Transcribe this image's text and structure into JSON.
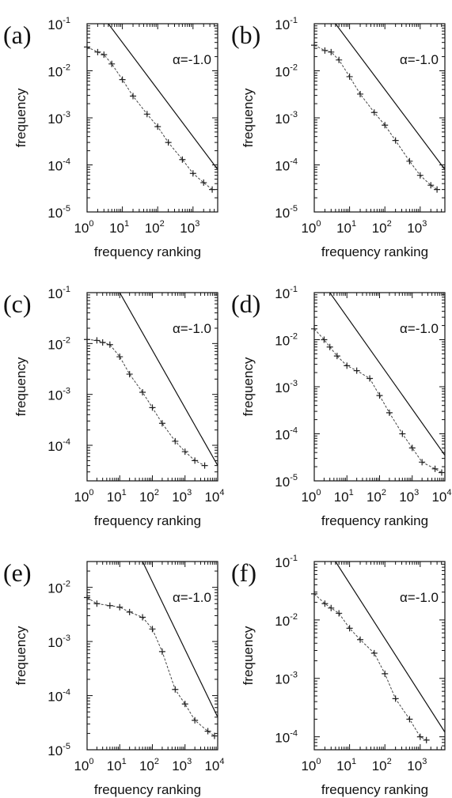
{
  "chart_data": [
    {
      "panel": "(a)",
      "type": "scatter",
      "xlabel": "frequency ranking",
      "ylabel": "frequency",
      "xscale": "log",
      "yscale": "log",
      "xlim": [
        1,
        5000
      ],
      "ylim": [
        1e-05,
        0.1
      ],
      "x_ticks": [
        "10^0",
        "10^1",
        "10^2",
        "10^3"
      ],
      "y_ticks": [
        "10^-1",
        "10^-2",
        "10^-3",
        "10^-4",
        "10^-5"
      ],
      "annotation": "α=-1.0",
      "series": [
        {
          "marker": "+",
          "points": [
            [
              1,
              0.032
            ],
            [
              2,
              0.025
            ],
            [
              3,
              0.022
            ],
            [
              5,
              0.014
            ],
            [
              10,
              0.0065
            ],
            [
              20,
              0.0029
            ],
            [
              50,
              0.0012
            ],
            [
              100,
              0.00065
            ],
            [
              200,
              0.0003
            ],
            [
              500,
              0.00013
            ],
            [
              1000,
              6.6e-05
            ],
            [
              2000,
              4.2e-05
            ],
            [
              3500,
              3e-05
            ]
          ]
        }
      ],
      "reference_line": {
        "slope": -1.0,
        "points": [
          [
            4,
            0.1
          ],
          [
            5000,
            8e-05
          ]
        ]
      }
    },
    {
      "panel": "(b)",
      "type": "scatter",
      "xlabel": "frequency ranking",
      "ylabel": "frequency",
      "xscale": "log",
      "yscale": "log",
      "xlim": [
        1,
        5000
      ],
      "ylim": [
        1e-05,
        0.1
      ],
      "x_ticks": [
        "10^0",
        "10^1",
        "10^2",
        "10^3"
      ],
      "y_ticks": [
        "10^-1",
        "10^-2",
        "10^-3",
        "10^-4",
        "10^-5"
      ],
      "annotation": "α=-1.0",
      "series": [
        {
          "marker": "+",
          "points": [
            [
              1,
              0.035
            ],
            [
              2,
              0.027
            ],
            [
              3,
              0.025
            ],
            [
              5,
              0.017
            ],
            [
              10,
              0.0075
            ],
            [
              20,
              0.0032
            ],
            [
              50,
              0.0013
            ],
            [
              100,
              0.0007
            ],
            [
              200,
              0.00033
            ],
            [
              500,
              0.00012
            ],
            [
              1000,
              6e-05
            ],
            [
              2000,
              3.7e-05
            ],
            [
              3000,
              3e-05
            ]
          ]
        }
      ],
      "reference_line": {
        "slope": -1.0,
        "points": [
          [
            4,
            0.1
          ],
          [
            5000,
            8e-05
          ]
        ]
      }
    },
    {
      "panel": "(c)",
      "type": "scatter",
      "xlabel": "frequency ranking",
      "ylabel": "frequency",
      "xscale": "log",
      "yscale": "log",
      "xlim": [
        1,
        10000
      ],
      "ylim": [
        2e-05,
        0.1
      ],
      "x_ticks": [
        "10^0",
        "10^1",
        "10^2",
        "10^3",
        "10^4"
      ],
      "y_ticks": [
        "10^-1",
        "10^-2",
        "10^-3",
        "10^-4"
      ],
      "annotation": "α=-1.0",
      "series": [
        {
          "marker": "+",
          "points": [
            [
              1,
              0.012
            ],
            [
              2,
              0.0115
            ],
            [
              3,
              0.0105
            ],
            [
              5,
              0.0095
            ],
            [
              10,
              0.0055
            ],
            [
              20,
              0.0025
            ],
            [
              50,
              0.0011
            ],
            [
              100,
              0.00055
            ],
            [
              200,
              0.00027
            ],
            [
              500,
              0.00012
            ],
            [
              1000,
              7.5e-05
            ],
            [
              2000,
              5e-05
            ],
            [
              4000,
              4e-05
            ]
          ]
        }
      ],
      "reference_line": {
        "slope": -1.0,
        "points": [
          [
            10,
            0.1
          ],
          [
            10000,
            4e-05
          ]
        ]
      }
    },
    {
      "panel": "(d)",
      "type": "scatter",
      "xlabel": "frequency ranking",
      "ylabel": "frequency",
      "xscale": "log",
      "yscale": "log",
      "xlim": [
        1,
        10000
      ],
      "ylim": [
        1e-05,
        0.1
      ],
      "x_ticks": [
        "10^0",
        "10^1",
        "10^2",
        "10^3",
        "10^4"
      ],
      "y_ticks": [
        "10^-1",
        "10^-2",
        "10^-3",
        "10^-4",
        "10^-5"
      ],
      "annotation": "α=-1.0",
      "series": [
        {
          "marker": "+",
          "points": [
            [
              1,
              0.017
            ],
            [
              2,
              0.01
            ],
            [
              3,
              0.007
            ],
            [
              5,
              0.0045
            ],
            [
              10,
              0.0028
            ],
            [
              20,
              0.0022
            ],
            [
              50,
              0.0015
            ],
            [
              100,
              0.00065
            ],
            [
              200,
              0.00028
            ],
            [
              500,
              0.0001
            ],
            [
              1000,
              5e-05
            ],
            [
              2000,
              2.5e-05
            ],
            [
              5000,
              1.8e-05
            ],
            [
              8000,
              1.5e-05
            ]
          ]
        }
      ],
      "reference_line": {
        "slope": -1.0,
        "points": [
          [
            3,
            0.1
          ],
          [
            10000,
            3.5e-05
          ]
        ]
      }
    },
    {
      "panel": "(e)",
      "type": "scatter",
      "xlabel": "frequency ranking",
      "ylabel": "frequency",
      "xscale": "log",
      "yscale": "log",
      "xlim": [
        1,
        10000
      ],
      "ylim": [
        1e-05,
        0.03
      ],
      "x_ticks": [
        "10^0",
        "10^1",
        "10^2",
        "10^3",
        "10^4"
      ],
      "y_ticks": [
        "10^-2",
        "10^-3",
        "10^-4",
        "10^-5"
      ],
      "annotation": "α=-1.0",
      "series": [
        {
          "marker": "+",
          "points": [
            [
              1,
              0.0065
            ],
            [
              2,
              0.005
            ],
            [
              5,
              0.0046
            ],
            [
              10,
              0.0043
            ],
            [
              20,
              0.0035
            ],
            [
              50,
              0.0028
            ],
            [
              100,
              0.0017
            ],
            [
              200,
              0.00065
            ],
            [
              500,
              0.00013
            ],
            [
              1000,
              7e-05
            ],
            [
              2000,
              3.5e-05
            ],
            [
              5000,
              2.2e-05
            ],
            [
              8000,
              1.8e-05
            ]
          ]
        }
      ],
      "reference_line": {
        "slope": -1.0,
        "points": [
          [
            50,
            0.03
          ],
          [
            10000,
            4e-05
          ]
        ]
      }
    },
    {
      "panel": "(f)",
      "type": "scatter",
      "xlabel": "frequency ranking",
      "ylabel": "frequency",
      "xscale": "log",
      "yscale": "log",
      "xlim": [
        1,
        5000
      ],
      "ylim": [
        6e-05,
        0.1
      ],
      "x_ticks": [
        "10^0",
        "10^1",
        "10^2",
        "10^3"
      ],
      "y_ticks": [
        "10^-1",
        "10^-2",
        "10^-3",
        "10^-4"
      ],
      "annotation": "α=-1.0",
      "series": [
        {
          "marker": "+",
          "points": [
            [
              1,
              0.028
            ],
            [
              2,
              0.019
            ],
            [
              3,
              0.016
            ],
            [
              5,
              0.013
            ],
            [
              10,
              0.0072
            ],
            [
              20,
              0.0046
            ],
            [
              50,
              0.0027
            ],
            [
              100,
              0.0012
            ],
            [
              200,
              0.00045
            ],
            [
              500,
              0.0002
            ],
            [
              1000,
              0.0001
            ],
            [
              1500,
              8.8e-05
            ]
          ]
        }
      ],
      "reference_line": {
        "slope": -1.0,
        "points": [
          [
            4,
            0.1
          ],
          [
            5000,
            0.00012
          ]
        ]
      }
    }
  ]
}
